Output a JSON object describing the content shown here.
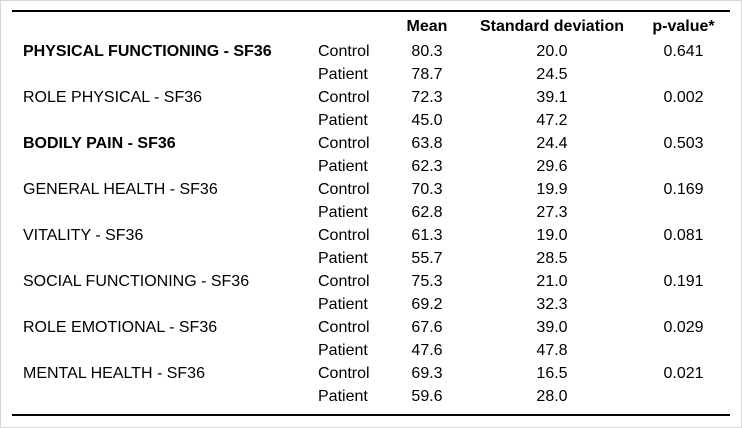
{
  "colors": {
    "text": "#000000",
    "rule": "#000000",
    "frame_border": "#d8d8d8",
    "background": "#ffffff"
  },
  "table": {
    "header": {
      "scale": "",
      "group": "",
      "mean": "Mean",
      "sd": "Standard deviation",
      "pvalue": "p-value*"
    },
    "rows": [
      {
        "scale": "PHYSICAL FUNCTIONING - SF36",
        "bold": true,
        "group": "Control",
        "mean": "80.3",
        "sd": "20.0",
        "p": "0.641"
      },
      {
        "scale": "",
        "bold": false,
        "group": "Patient",
        "mean": "78.7",
        "sd": "24.5",
        "p": ""
      },
      {
        "scale": "ROLE PHYSICAL - SF36",
        "bold": false,
        "group": "Control",
        "mean": "72.3",
        "sd": "39.1",
        "p": "0.002"
      },
      {
        "scale": "",
        "bold": false,
        "group": "Patient",
        "mean": "45.0",
        "sd": "47.2",
        "p": ""
      },
      {
        "scale": "BODILY PAIN - SF36",
        "bold": true,
        "group": "Control",
        "mean": "63.8",
        "sd": "24.4",
        "p": "0.503"
      },
      {
        "scale": "",
        "bold": false,
        "group": "Patient",
        "mean": "62.3",
        "sd": "29.6",
        "p": ""
      },
      {
        "scale": "GENERAL HEALTH - SF36",
        "bold": false,
        "group": "Control",
        "mean": "70.3",
        "sd": "19.9",
        "p": "0.169"
      },
      {
        "scale": "",
        "bold": false,
        "group": "Patient",
        "mean": "62.8",
        "sd": "27.3",
        "p": ""
      },
      {
        "scale": "VITALITY - SF36",
        "bold": false,
        "group": "Control",
        "mean": "61.3",
        "sd": "19.0",
        "p": "0.081"
      },
      {
        "scale": "",
        "bold": false,
        "group": "Patient",
        "mean": "55.7",
        "sd": "28.5",
        "p": ""
      },
      {
        "scale": "SOCIAL FUNCTIONING - SF36",
        "bold": false,
        "group": "Control",
        "mean": "75.3",
        "sd": "21.0",
        "p": "0.191"
      },
      {
        "scale": "",
        "bold": false,
        "group": "Patient",
        "mean": "69.2",
        "sd": "32.3",
        "p": ""
      },
      {
        "scale": "ROLE EMOTIONAL - SF36",
        "bold": false,
        "group": "Control",
        "mean": "67.6",
        "sd": "39.0",
        "p": "0.029"
      },
      {
        "scale": "",
        "bold": false,
        "group": "Patient",
        "mean": "47.6",
        "sd": "47.8",
        "p": ""
      },
      {
        "scale": "MENTAL HEALTH - SF36",
        "bold": false,
        "group": "Control",
        "mean": "69.3",
        "sd": "16.5",
        "p": "0.021"
      },
      {
        "scale": "",
        "bold": false,
        "group": "Patient",
        "mean": "59.6",
        "sd": "28.0",
        "p": ""
      }
    ]
  }
}
